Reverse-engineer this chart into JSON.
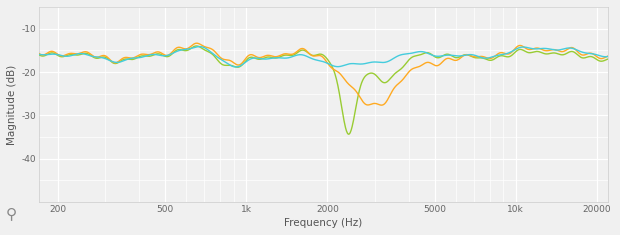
{
  "title": "",
  "xlabel": "Frequency (Hz)",
  "ylabel": "Magnitude (dB)",
  "xlim_log": [
    170,
    22000
  ],
  "ylim": [
    -50,
    -5
  ],
  "yticks": [
    -10,
    -20,
    -30,
    -40
  ],
  "background_color": "#f0f0f0",
  "grid_color": "#ffffff",
  "colors": {
    "cyan": "#44ccdd",
    "green": "#99cc33",
    "orange": "#ffaa22"
  },
  "linewidth": 1.0
}
